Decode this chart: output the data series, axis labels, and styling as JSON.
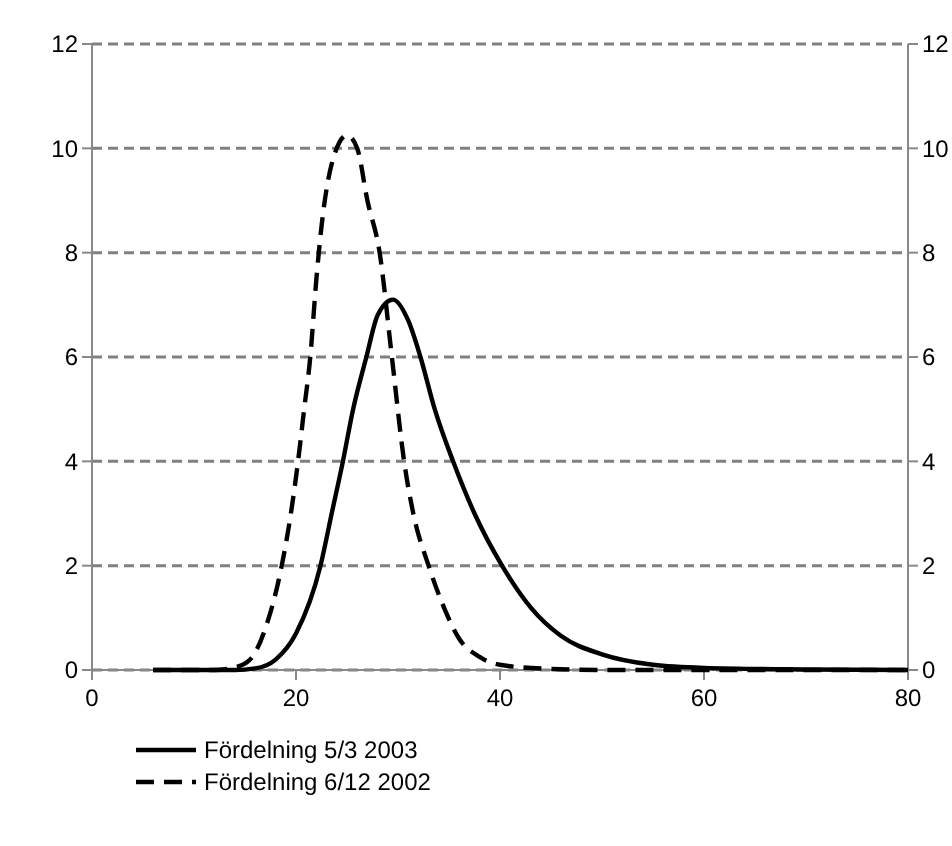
{
  "chart_data": {
    "type": "line",
    "xlim": [
      0,
      80
    ],
    "xticks": [
      0,
      20,
      40,
      60,
      80
    ],
    "ylim": [
      0,
      12
    ],
    "yticks": [
      0,
      2,
      4,
      6,
      8,
      10,
      12
    ],
    "y2lim": [
      0,
      12
    ],
    "y2ticks": [
      0,
      2,
      4,
      6,
      8,
      10,
      12
    ],
    "grid": "y",
    "legend": "bottom",
    "series": [
      {
        "name": "Fördelning 5/3 2003",
        "color": "#000000",
        "line_style": "solid",
        "x": [
          6,
          14,
          16,
          18,
          20,
          22.4,
          23.5,
          24.6,
          25.6,
          26.9,
          28,
          29.5,
          31,
          32.2,
          33.6,
          35.4,
          37.5,
          40.2,
          43,
          46,
          50,
          55,
          60,
          70,
          80
        ],
        "values": [
          0,
          0,
          0.03,
          0.2,
          0.7,
          2,
          3,
          4,
          5,
          6,
          6.8,
          7.1,
          6.7,
          6,
          5,
          4,
          3,
          2,
          1.2,
          0.65,
          0.3,
          0.1,
          0.04,
          0.01,
          0
        ]
      },
      {
        "name": "Fördelning 6/12 2002",
        "color": "#000000",
        "line_style": "dashed",
        "x": [
          6,
          12,
          14,
          15.5,
          17,
          18.6,
          19.5,
          20.2,
          20.8,
          21.4,
          22,
          22.5,
          23.5,
          25,
          26,
          27,
          28.2,
          29.4,
          30.6,
          31.5,
          33,
          34.5,
          36,
          38,
          40,
          45,
          50,
          80
        ],
        "values": [
          0,
          0,
          0.05,
          0.2,
          0.8,
          2,
          3,
          4,
          5,
          6,
          7.5,
          8.5,
          9.7,
          10.25,
          10,
          9,
          8,
          6,
          4,
          3,
          2,
          1.2,
          0.6,
          0.25,
          0.1,
          0.02,
          0,
          0
        ]
      }
    ]
  }
}
